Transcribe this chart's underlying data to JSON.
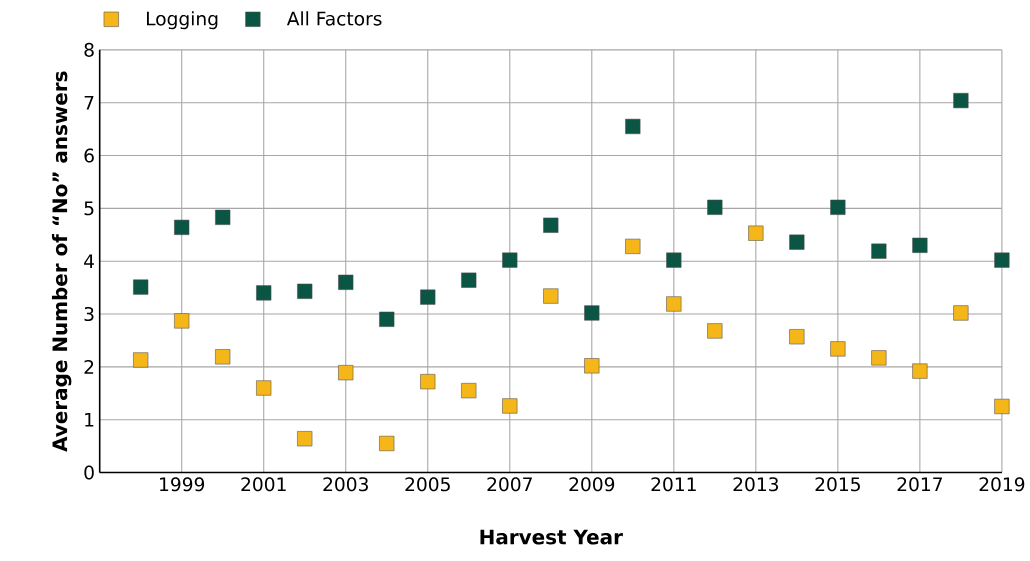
{
  "chart_data": {
    "type": "scatter",
    "xlabel": "Harvest Year",
    "ylabel": "Average Number of “No” answers",
    "x": [
      1998,
      1999,
      2000,
      2001,
      2002,
      2003,
      2004,
      2005,
      2006,
      2007,
      2008,
      2009,
      2010,
      2011,
      2012,
      2013,
      2014,
      2015,
      2016,
      2017,
      2018,
      2019
    ],
    "series": [
      {
        "name": "Logging",
        "color": "#f5b619",
        "values": [
          2.13,
          2.87,
          2.19,
          1.6,
          0.64,
          1.89,
          0.55,
          1.72,
          1.55,
          1.26,
          3.34,
          2.02,
          4.28,
          3.19,
          2.68,
          4.53,
          2.57,
          2.34,
          2.17,
          1.92,
          3.02,
          1.25
        ]
      },
      {
        "name": "All Factors",
        "color": "#0b5545",
        "values": [
          3.51,
          4.64,
          4.83,
          3.4,
          3.43,
          3.6,
          2.9,
          3.32,
          3.64,
          4.02,
          4.68,
          3.02,
          6.55,
          4.02,
          5.02,
          null,
          4.36,
          5.02,
          4.19,
          4.3,
          7.04,
          4.02
        ]
      }
    ],
    "xlim": [
      1997,
      2019
    ],
    "xticks": [
      1999,
      2001,
      2003,
      2005,
      2007,
      2009,
      2011,
      2013,
      2015,
      2017,
      2019
    ],
    "ylim": [
      0,
      8
    ],
    "yticks": [
      0,
      1,
      2,
      3,
      4,
      5,
      6,
      7,
      8
    ],
    "grid": true,
    "legend": "top left",
    "marker": "square"
  }
}
